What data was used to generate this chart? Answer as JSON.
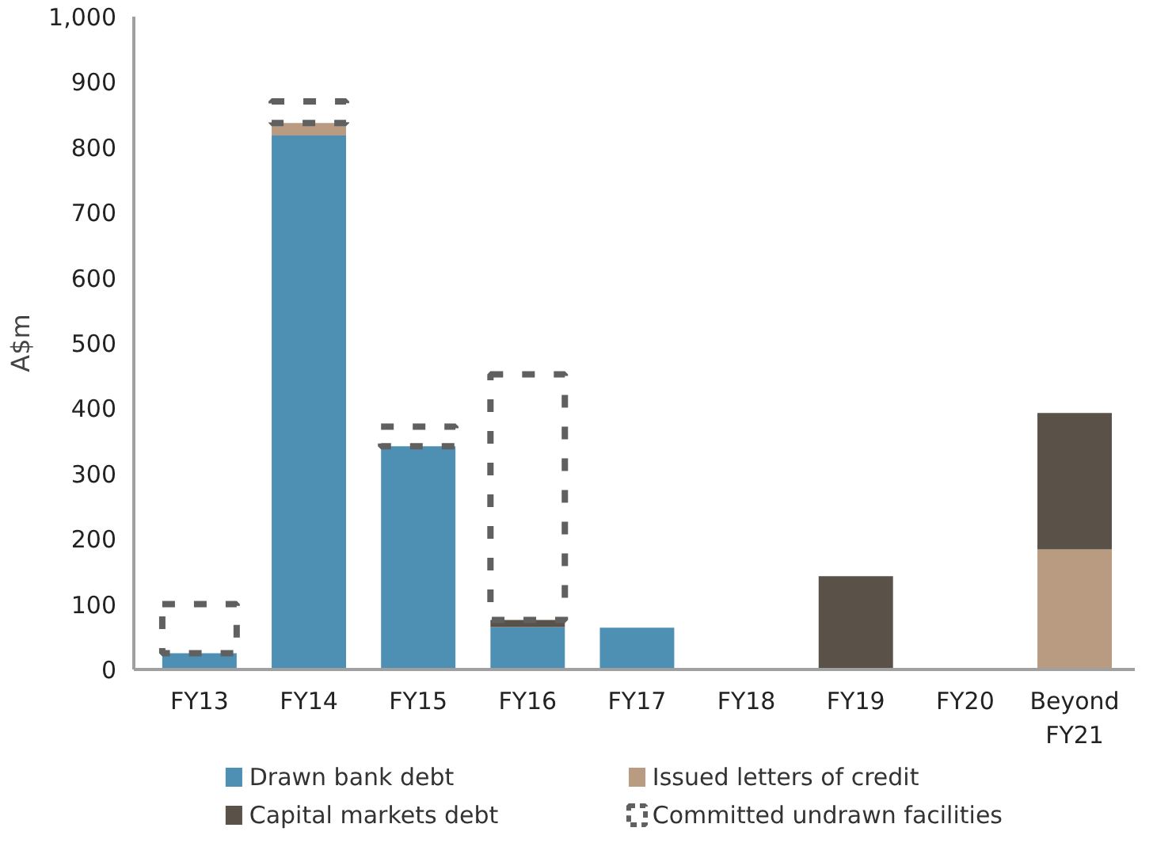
{
  "chart_data": {
    "type": "bar",
    "stacked": true,
    "ylabel": "A$m",
    "categories": [
      "FY13",
      "FY14",
      "FY15",
      "FY16",
      "FY17",
      "FY18",
      "FY19",
      "FY20",
      "Beyond FY21"
    ],
    "series": [
      {
        "name": "Drawn bank debt",
        "color": "#4d90b4",
        "values": [
          25,
          818,
          342,
          65,
          64,
          null,
          null,
          null,
          null
        ]
      },
      {
        "name": "Issued letters of credit",
        "color": "#b89b81",
        "values": [
          null,
          19,
          null,
          null,
          null,
          null,
          null,
          null,
          184
        ]
      },
      {
        "name": "Capital markets debt",
        "color": "#5a5248",
        "values": [
          null,
          null,
          null,
          11,
          null,
          null,
          143,
          null,
          209
        ]
      },
      {
        "name": "Committed undrawn facilities",
        "color": "#606060",
        "line_style": "dashed",
        "values": [
          75,
          33,
          30,
          376,
          null,
          null,
          null,
          null,
          null
        ]
      }
    ],
    "ylim": [
      0,
      1000
    ],
    "yticks": [
      0,
      100,
      200,
      300,
      400,
      500,
      600,
      700,
      800,
      900,
      {
        "value": 1000,
        "label": "1,000"
      }
    ],
    "grid": false,
    "legend": "bottom"
  }
}
